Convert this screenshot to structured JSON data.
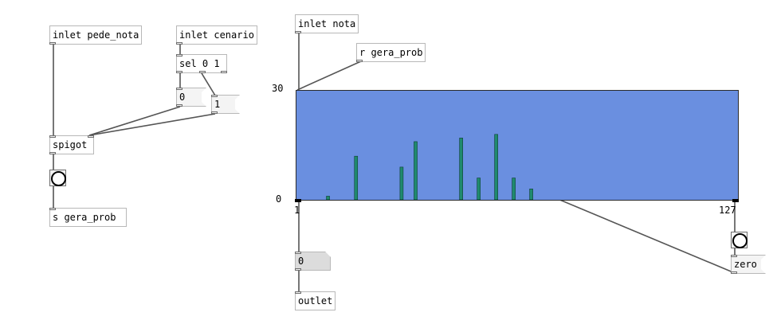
{
  "patch": {
    "inlet_pede_nota": "inlet pede_nota",
    "inlet_cenario": "inlet cenario",
    "sel": "sel 0 1",
    "msg_zero_val": "0",
    "msg_one_val": "1",
    "spigot": "spigot",
    "send_gera_prob": "s gera_prob",
    "inlet_nota": "inlet nota",
    "receive_gera_prob": "r gera_prob",
    "outlet": "outlet",
    "numbox_value": "0",
    "zero_msg": "zero"
  },
  "graph": {
    "y_top_label": "30",
    "y_bottom_label": "0",
    "x_left_label": "1",
    "x_right_label": "127",
    "bg_color": "#6a8fe0",
    "bar_color": "#1f8a6e",
    "x_range": [
      1,
      127
    ],
    "y_range": [
      0,
      30
    ],
    "bars": [
      {
        "x": 10,
        "y": 1
      },
      {
        "x": 18,
        "y": 12
      },
      {
        "x": 31,
        "y": 9
      },
      {
        "x": 35,
        "y": 16
      },
      {
        "x": 48,
        "y": 17
      },
      {
        "x": 53,
        "y": 6
      },
      {
        "x": 58,
        "y": 18
      },
      {
        "x": 63,
        "y": 6
      },
      {
        "x": 68,
        "y": 3
      }
    ]
  },
  "icons": {
    "bang_left": "bang-icon",
    "bang_right": "bang-icon"
  }
}
